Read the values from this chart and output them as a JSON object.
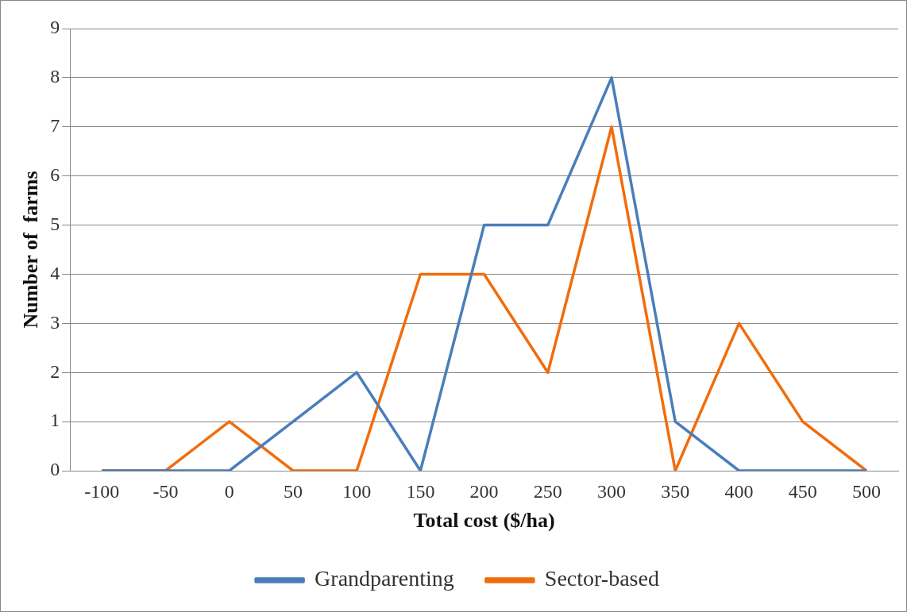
{
  "chart_data": {
    "type": "line",
    "xlabel": "Total cost ($/ha)",
    "ylabel": "Number of  farms",
    "categories": [
      "-100",
      "-50",
      "0",
      "50",
      "100",
      "150",
      "200",
      "250",
      "300",
      "350",
      "400",
      "450",
      "500"
    ],
    "series": [
      {
        "name": "Grandparenting",
        "color": "#4a7ebb",
        "values": [
          0,
          0,
          0,
          1,
          2,
          0,
          5,
          5,
          8,
          1,
          0,
          0,
          0
        ]
      },
      {
        "name": "Sector-based",
        "color": "#f26c0d",
        "values": [
          0,
          0,
          1,
          0,
          0,
          4,
          4,
          2,
          7,
          0,
          3,
          1,
          0
        ]
      }
    ],
    "ylim": [
      0,
      9
    ],
    "yticks": [
      0,
      1,
      2,
      3,
      4,
      5,
      6,
      7,
      8,
      9
    ],
    "grid": "y",
    "legend": "bottom",
    "marker": "none",
    "line_style": "solid"
  }
}
